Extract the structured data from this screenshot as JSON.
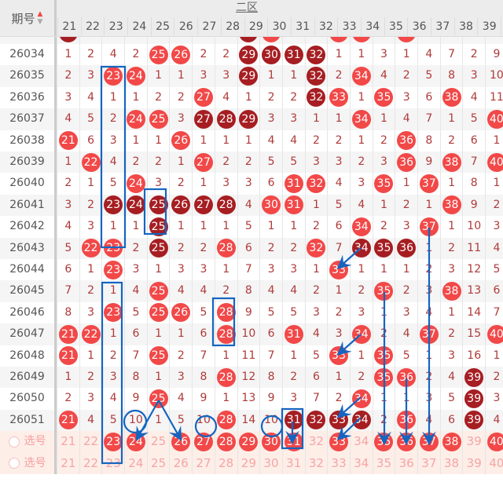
{
  "header": {
    "period_label": "期号",
    "zone_label": "二区",
    "columns": [
      "21",
      "22",
      "23",
      "24",
      "25",
      "26",
      "27",
      "28",
      "29",
      "30",
      "31",
      "32",
      "33",
      "34",
      "35",
      "36",
      "37",
      "38",
      "39",
      "40"
    ]
  },
  "colors": {
    "hit": "#f24848",
    "repeat_hit": "#a61e22",
    "annotation": "#1565c0"
  },
  "partial_row": [
    "d",
    "",
    "",
    "",
    "",
    "",
    "",
    "",
    "d",
    "r",
    "",
    "",
    "r",
    "r",
    "",
    "r",
    "",
    "",
    "",
    ""
  ],
  "rows": [
    {
      "period": "26034",
      "cells": [
        "1",
        "2",
        "4",
        "2",
        "r",
        "r",
        "2",
        "2",
        "d",
        "d",
        "d",
        "d",
        "1",
        "1",
        "3",
        "1",
        "4",
        "7",
        "2",
        "9"
      ]
    },
    {
      "period": "26035",
      "cells": [
        "2",
        "3",
        "r",
        "r",
        "1",
        "1",
        "3",
        "3",
        "d",
        "1",
        "1",
        "d",
        "2",
        "r",
        "4",
        "2",
        "5",
        "8",
        "3",
        "10"
      ]
    },
    {
      "period": "26036",
      "cells": [
        "3",
        "4",
        "1",
        "1",
        "2",
        "2",
        "r",
        "4",
        "1",
        "2",
        "2",
        "d",
        "r",
        "1",
        "r",
        "3",
        "6",
        "r",
        "4",
        "11"
      ]
    },
    {
      "period": "26037",
      "cells": [
        "4",
        "5",
        "2",
        "r",
        "r",
        "3",
        "d",
        "d",
        "d",
        "3",
        "3",
        "1",
        "1",
        "r",
        "1",
        "4",
        "7",
        "1",
        "5",
        "r"
      ]
    },
    {
      "period": "26038",
      "cells": [
        "r",
        "6",
        "3",
        "1",
        "1",
        "r",
        "1",
        "1",
        "1",
        "4",
        "4",
        "2",
        "2",
        "1",
        "2",
        "r",
        "8",
        "2",
        "6",
        "1"
      ]
    },
    {
      "period": "26039",
      "cells": [
        "1",
        "r",
        "4",
        "2",
        "2",
        "1",
        "r",
        "2",
        "2",
        "5",
        "5",
        "3",
        "3",
        "2",
        "3",
        "r",
        "9",
        "r",
        "7",
        "r"
      ]
    },
    {
      "period": "26040",
      "cells": [
        "2",
        "1",
        "5",
        "r",
        "3",
        "2",
        "1",
        "3",
        "3",
        "6",
        "r",
        "r",
        "4",
        "3",
        "r",
        "1",
        "r",
        "1",
        "8",
        "1"
      ]
    },
    {
      "period": "26041",
      "cells": [
        "3",
        "2",
        "d",
        "d",
        "d",
        "d",
        "d",
        "d",
        "4",
        "r",
        "r",
        "1",
        "5",
        "4",
        "1",
        "2",
        "1",
        "r",
        "9",
        "2"
      ]
    },
    {
      "period": "26042",
      "cells": [
        "4",
        "3",
        "1",
        "1",
        "d",
        "1",
        "1",
        "1",
        "5",
        "1",
        "1",
        "2",
        "6",
        "r",
        "2",
        "3",
        "r",
        "1",
        "10",
        "3"
      ]
    },
    {
      "period": "26043",
      "cells": [
        "5",
        "r",
        "r",
        "2",
        "d",
        "2",
        "2",
        "r",
        "6",
        "2",
        "2",
        "r",
        "7",
        "d",
        "d",
        "d",
        "1",
        "2",
        "11",
        "4"
      ]
    },
    {
      "period": "26044",
      "cells": [
        "6",
        "1",
        "r",
        "3",
        "1",
        "3",
        "3",
        "1",
        "7",
        "3",
        "3",
        "1",
        "r",
        "1",
        "1",
        "1",
        "2",
        "3",
        "12",
        "5"
      ]
    },
    {
      "period": "26045",
      "cells": [
        "7",
        "2",
        "1",
        "4",
        "r",
        "4",
        "4",
        "2",
        "8",
        "4",
        "4",
        "2",
        "1",
        "2",
        "r",
        "2",
        "3",
        "r",
        "13",
        "6"
      ]
    },
    {
      "period": "26046",
      "cells": [
        "8",
        "3",
        "r",
        "5",
        "r",
        "r",
        "5",
        "r",
        "9",
        "5",
        "5",
        "3",
        "2",
        "3",
        "1",
        "3",
        "4",
        "1",
        "14",
        "7"
      ]
    },
    {
      "period": "26047",
      "cells": [
        "r",
        "r",
        "1",
        "6",
        "1",
        "1",
        "6",
        "r",
        "10",
        "6",
        "r",
        "4",
        "3",
        "r",
        "2",
        "4",
        "r",
        "2",
        "15",
        "r"
      ]
    },
    {
      "period": "26048",
      "cells": [
        "r",
        "1",
        "2",
        "7",
        "r",
        "2",
        "7",
        "1",
        "11",
        "7",
        "1",
        "5",
        "r",
        "1",
        "r",
        "5",
        "1",
        "3",
        "16",
        "1"
      ]
    },
    {
      "period": "26049",
      "cells": [
        "1",
        "2",
        "3",
        "8",
        "1",
        "3",
        "8",
        "r",
        "12",
        "8",
        "2",
        "6",
        "1",
        "2",
        "r",
        "r",
        "2",
        "4",
        "d",
        "2"
      ]
    },
    {
      "period": "26050",
      "cells": [
        "2",
        "3",
        "4",
        "9",
        "r",
        "4",
        "9",
        "1",
        "13",
        "9",
        "3",
        "7",
        "2",
        "r",
        "1",
        "1",
        "3",
        "5",
        "d",
        "3"
      ]
    },
    {
      "period": "26051",
      "cells": [
        "r",
        "4",
        "5",
        "10",
        "1",
        "5",
        "10",
        "r",
        "14",
        "10",
        "d",
        "d",
        "d",
        "d",
        "2",
        "r",
        "4",
        "6",
        "d",
        "4"
      ]
    }
  ],
  "select_rows": [
    {
      "label": "选号",
      "cells": [
        "",
        "",
        "r",
        "r",
        "",
        "r",
        "r",
        "r",
        "r",
        "r",
        "r",
        "",
        "r",
        "",
        "r",
        "r",
        "r",
        "r",
        "",
        "r"
      ]
    },
    {
      "label": "选号",
      "cells": [
        "",
        "",
        "",
        "",
        "",
        "",
        "",
        "",
        "",
        "",
        "",
        "",
        "",
        "",
        "",
        "",
        "",
        "",
        "",
        ""
      ]
    }
  ]
}
